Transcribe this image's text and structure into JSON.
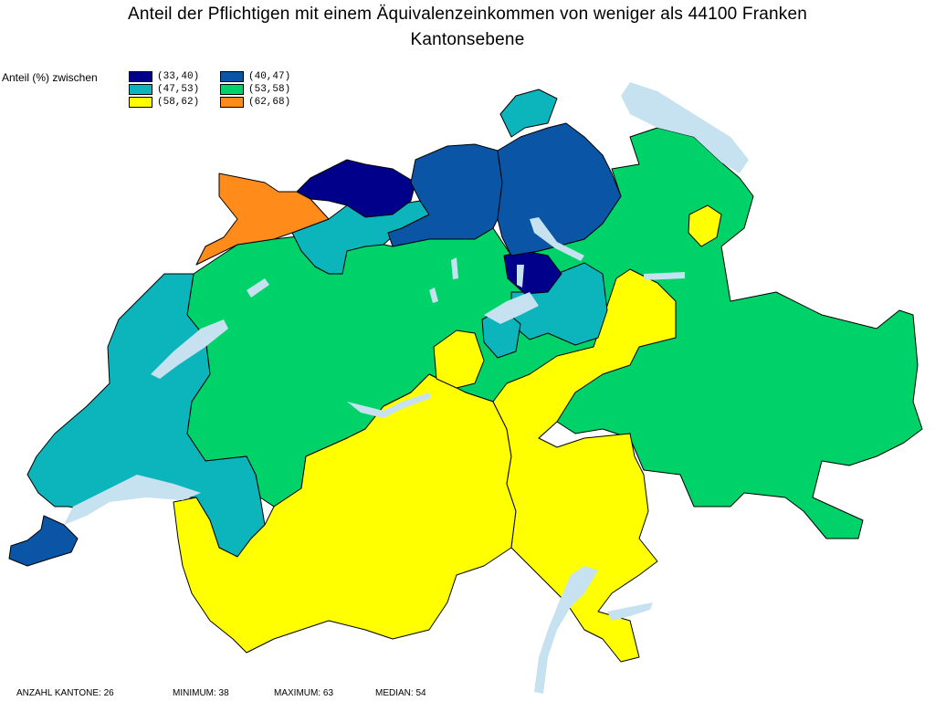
{
  "title": {
    "line1": "Anteil der Pflichtigen mit einem Äquivalenzeinkommen von weniger als 44100 Franken",
    "line2": "Kantonsebene"
  },
  "legend": {
    "label": "Anteil (%) zwischen",
    "classes": [
      {
        "range": "(33,40)",
        "color": "#00008b"
      },
      {
        "range": "(40,47)",
        "color": "#0b55a6"
      },
      {
        "range": "(47,53)",
        "color": "#0cb4bb"
      },
      {
        "range": "(53,58)",
        "color": "#00d26a"
      },
      {
        "range": "(58,62)",
        "color": "#ffff00"
      },
      {
        "range": "(62,68)",
        "color": "#ff8c1a"
      }
    ]
  },
  "colors": {
    "lake": "#c6e2f0",
    "border": "#000000"
  },
  "stats": {
    "count": "ANZAHL KANTONE: 26",
    "minimum": "MINIMUM: 38",
    "maximum": "MAXIMUM: 63",
    "median": "MEDIAN: 54"
  }
}
